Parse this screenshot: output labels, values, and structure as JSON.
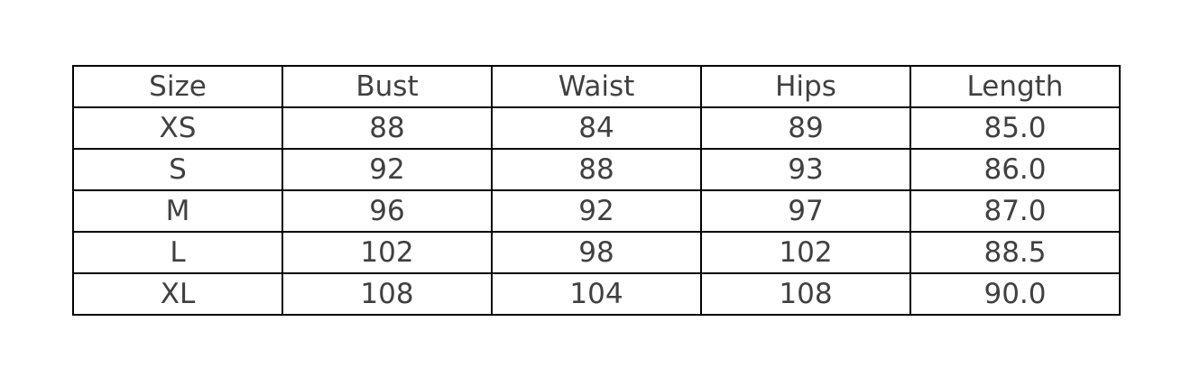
{
  "table": {
    "headers": [
      "Size",
      "Bust",
      "Waist",
      "Hips",
      "Length"
    ],
    "rows": [
      [
        "XS",
        "88",
        "84",
        "89",
        "85.0"
      ],
      [
        "S",
        "92",
        "88",
        "93",
        "86.0"
      ],
      [
        "M",
        "96",
        "92",
        "97",
        "87.0"
      ],
      [
        "L",
        "102",
        "98",
        "102",
        "88.5"
      ],
      [
        "XL",
        "108",
        "104",
        "108",
        "90.0"
      ]
    ]
  }
}
